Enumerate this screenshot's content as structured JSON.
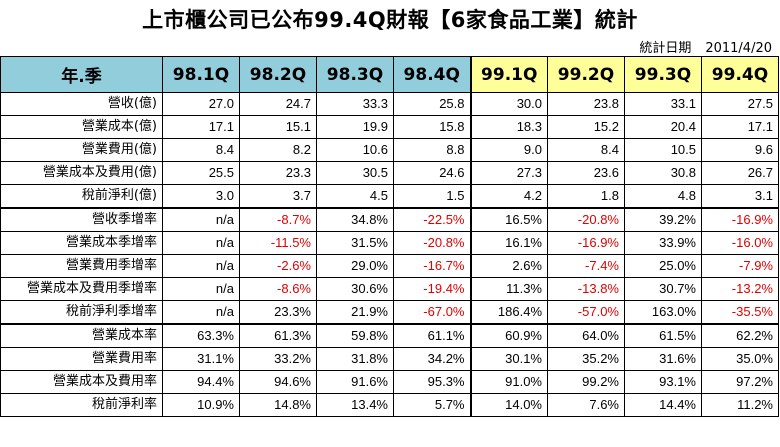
{
  "title": "上市櫃公司已公布99.4Q財報【6家食品工業】統計",
  "stat_date": {
    "label": "統計日期",
    "value": "2011/4/20"
  },
  "header": {
    "label": "年.季",
    "quarters": [
      "98.1Q",
      "98.2Q",
      "98.3Q",
      "98.4Q",
      "99.1Q",
      "99.2Q",
      "99.3Q",
      "99.4Q"
    ]
  },
  "colors": {
    "header_98": "#92cddc",
    "header_99": "#ffff99",
    "negative": "#e00000"
  },
  "rows": [
    {
      "label": "營收(億)",
      "values": [
        "27.0",
        "24.7",
        "33.3",
        "25.8",
        "30.0",
        "23.8",
        "33.1",
        "27.5"
      ]
    },
    {
      "label": "營業成本(億)",
      "values": [
        "17.1",
        "15.1",
        "19.9",
        "15.8",
        "18.3",
        "15.2",
        "20.4",
        "17.1"
      ]
    },
    {
      "label": "營業費用(億)",
      "values": [
        "8.4",
        "8.2",
        "10.6",
        "8.8",
        "9.0",
        "8.4",
        "10.5",
        "9.6"
      ]
    },
    {
      "label": "營業成本及費用(億)",
      "values": [
        "25.5",
        "23.3",
        "30.5",
        "24.6",
        "27.3",
        "23.6",
        "30.8",
        "26.7"
      ]
    },
    {
      "label": "稅前淨利(億)",
      "values": [
        "3.0",
        "3.7",
        "4.5",
        "1.5",
        "4.2",
        "1.8",
        "4.8",
        "3.1"
      ]
    },
    {
      "label": "營收季增率",
      "values": [
        "n/a",
        "-8.7%",
        "34.8%",
        "-22.5%",
        "16.5%",
        "-20.8%",
        "39.2%",
        "-16.9%"
      ]
    },
    {
      "label": "營業成本季增率",
      "values": [
        "n/a",
        "-11.5%",
        "31.5%",
        "-20.8%",
        "16.1%",
        "-16.9%",
        "33.9%",
        "-16.0%"
      ]
    },
    {
      "label": "營業費用季增率",
      "values": [
        "n/a",
        "-2.6%",
        "29.0%",
        "-16.7%",
        "2.6%",
        "-7.4%",
        "25.0%",
        "-7.9%"
      ]
    },
    {
      "label": "營業成本及費用季增率",
      "values": [
        "n/a",
        "-8.6%",
        "30.6%",
        "-19.4%",
        "11.3%",
        "-13.8%",
        "30.7%",
        "-13.2%"
      ]
    },
    {
      "label": "稅前淨利季增率",
      "values": [
        "n/a",
        "23.3%",
        "21.9%",
        "-67.0%",
        "186.4%",
        "-57.0%",
        "163.0%",
        "-35.5%"
      ]
    },
    {
      "label": "營業成本率",
      "values": [
        "63.3%",
        "61.3%",
        "59.8%",
        "61.1%",
        "60.9%",
        "64.0%",
        "61.5%",
        "62.2%"
      ]
    },
    {
      "label": "營業費用率",
      "values": [
        "31.1%",
        "33.2%",
        "31.8%",
        "34.2%",
        "30.1%",
        "35.2%",
        "31.6%",
        "35.0%"
      ]
    },
    {
      "label": "營業成本及費用率",
      "values": [
        "94.4%",
        "94.6%",
        "91.6%",
        "95.3%",
        "91.0%",
        "99.2%",
        "93.1%",
        "97.2%"
      ]
    },
    {
      "label": "稅前淨利率",
      "values": [
        "10.9%",
        "14.8%",
        "13.4%",
        "5.7%",
        "14.0%",
        "7.6%",
        "14.4%",
        "11.2%"
      ]
    }
  ]
}
